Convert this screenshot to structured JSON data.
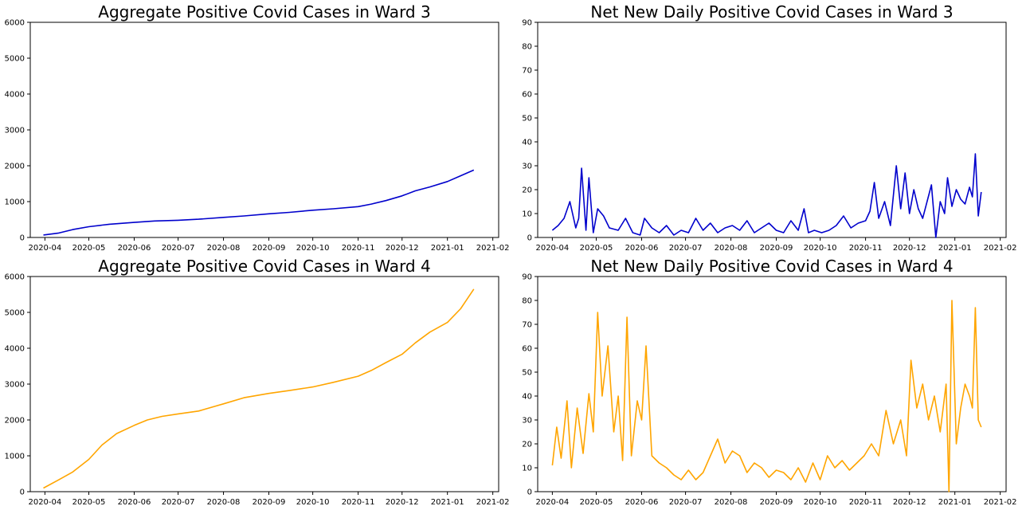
{
  "chart_data": [
    {
      "type": "line",
      "title": "Aggregate Positive Covid Cases in Ward 3",
      "xlabel": "",
      "ylabel": "",
      "grid": false,
      "ylim": [
        0,
        6000
      ],
      "yticks": [
        0,
        1000,
        2000,
        3000,
        4000,
        5000,
        6000
      ],
      "xlim": [
        "2020-03-22",
        "2021-02-05"
      ],
      "xticks": [
        "2020-04",
        "2020-05",
        "2020-06",
        "2020-07",
        "2020-08",
        "2020-09",
        "2020-10",
        "2020-11",
        "2020-12",
        "2021-01",
        "2021-02"
      ],
      "color": "#0000cc",
      "series": [
        {
          "x": [
            "2020-03-31",
            "2020-04-10",
            "2020-04-20",
            "2020-05-01",
            "2020-05-15",
            "2020-06-01",
            "2020-06-15",
            "2020-07-01",
            "2020-07-15",
            "2020-08-01",
            "2020-08-15",
            "2020-09-01",
            "2020-09-15",
            "2020-10-01",
            "2020-10-15",
            "2020-11-01",
            "2020-11-10",
            "2020-11-20",
            "2020-12-01",
            "2020-12-10",
            "2020-12-20",
            "2021-01-01",
            "2021-01-10",
            "2021-01-19"
          ],
          "y": [
            70,
            120,
            220,
            300,
            370,
            420,
            460,
            480,
            510,
            560,
            600,
            660,
            700,
            760,
            800,
            860,
            930,
            1030,
            1160,
            1300,
            1410,
            1560,
            1720,
            1880
          ]
        }
      ]
    },
    {
      "type": "line",
      "title": "Net New Daily Positive Covid Cases in Ward 3",
      "xlabel": "",
      "ylabel": "",
      "grid": false,
      "ylim": [
        0,
        90
      ],
      "yticks": [
        0,
        10,
        20,
        30,
        40,
        50,
        60,
        70,
        80,
        90
      ],
      "xlim": [
        "2020-03-22",
        "2021-02-05"
      ],
      "xticks": [
        "2020-04",
        "2020-05",
        "2020-06",
        "2020-07",
        "2020-08",
        "2020-09",
        "2020-10",
        "2020-11",
        "2020-12",
        "2021-01",
        "2021-02"
      ],
      "color": "#0000cc",
      "series": [
        {
          "x": [
            "2020-04-01",
            "2020-04-05",
            "2020-04-09",
            "2020-04-13",
            "2020-04-17",
            "2020-04-19",
            "2020-04-21",
            "2020-04-24",
            "2020-04-26",
            "2020-04-29",
            "2020-05-02",
            "2020-05-06",
            "2020-05-10",
            "2020-05-16",
            "2020-05-21",
            "2020-05-26",
            "2020-05-31",
            "2020-06-03",
            "2020-06-08",
            "2020-06-13",
            "2020-06-18",
            "2020-06-23",
            "2020-06-28",
            "2020-07-03",
            "2020-07-08",
            "2020-07-13",
            "2020-07-18",
            "2020-07-23",
            "2020-07-28",
            "2020-08-02",
            "2020-08-07",
            "2020-08-12",
            "2020-08-17",
            "2020-08-22",
            "2020-08-27",
            "2020-09-01",
            "2020-09-06",
            "2020-09-11",
            "2020-09-16",
            "2020-09-20",
            "2020-09-23",
            "2020-09-27",
            "2020-10-02",
            "2020-10-07",
            "2020-10-12",
            "2020-10-17",
            "2020-10-22",
            "2020-10-27",
            "2020-11-01",
            "2020-11-04",
            "2020-11-07",
            "2020-11-10",
            "2020-11-14",
            "2020-11-18",
            "2020-11-22",
            "2020-11-25",
            "2020-11-28",
            "2020-12-01",
            "2020-12-04",
            "2020-12-07",
            "2020-12-10",
            "2020-12-13",
            "2020-12-16",
            "2020-12-19",
            "2020-12-22",
            "2020-12-25",
            "2020-12-27",
            "2020-12-30",
            "2021-01-02",
            "2021-01-05",
            "2021-01-08",
            "2021-01-11",
            "2021-01-13",
            "2021-01-15",
            "2021-01-17",
            "2021-01-19"
          ],
          "y": [
            3,
            5,
            8,
            15,
            4,
            8,
            29,
            3,
            25,
            2,
            12,
            9,
            4,
            3,
            8,
            2,
            1,
            8,
            4,
            2,
            5,
            1,
            3,
            2,
            8,
            3,
            6,
            2,
            4,
            5,
            3,
            7,
            2,
            4,
            6,
            3,
            2,
            7,
            3,
            12,
            2,
            3,
            2,
            3,
            5,
            9,
            4,
            6,
            7,
            11,
            23,
            8,
            15,
            5,
            30,
            12,
            27,
            10,
            20,
            12,
            8,
            15,
            22,
            0,
            15,
            10,
            25,
            13,
            20,
            16,
            14,
            21,
            17,
            35,
            9,
            19
          ]
        }
      ]
    },
    {
      "type": "line",
      "title": "Aggregate Positive Covid Cases in Ward 4",
      "xlabel": "",
      "ylabel": "",
      "grid": false,
      "ylim": [
        0,
        6000
      ],
      "yticks": [
        0,
        1000,
        2000,
        3000,
        4000,
        5000,
        6000
      ],
      "xlim": [
        "2020-03-22",
        "2021-02-05"
      ],
      "xticks": [
        "2020-04",
        "2020-05",
        "2020-06",
        "2020-07",
        "2020-08",
        "2020-09",
        "2020-10",
        "2020-11",
        "2020-12",
        "2021-01",
        "2021-02"
      ],
      "color": "#ffa500",
      "series": [
        {
          "x": [
            "2020-03-31",
            "2020-04-10",
            "2020-04-20",
            "2020-05-01",
            "2020-05-10",
            "2020-05-20",
            "2020-06-01",
            "2020-06-10",
            "2020-06-20",
            "2020-07-01",
            "2020-07-15",
            "2020-08-01",
            "2020-08-15",
            "2020-09-01",
            "2020-09-15",
            "2020-10-01",
            "2020-10-15",
            "2020-11-01",
            "2020-11-10",
            "2020-11-20",
            "2020-12-01",
            "2020-12-10",
            "2020-12-20",
            "2021-01-01",
            "2021-01-10",
            "2021-01-19"
          ],
          "y": [
            100,
            320,
            550,
            900,
            1300,
            1620,
            1850,
            2000,
            2100,
            2170,
            2250,
            2450,
            2620,
            2740,
            2820,
            2920,
            3050,
            3220,
            3380,
            3600,
            3830,
            4150,
            4450,
            4720,
            5100,
            5650
          ]
        }
      ]
    },
    {
      "type": "line",
      "title": "Net New Daily Positive Covid Cases in Ward 4",
      "xlabel": "",
      "ylabel": "",
      "grid": false,
      "ylim": [
        0,
        90
      ],
      "yticks": [
        0,
        10,
        20,
        30,
        40,
        50,
        60,
        70,
        80,
        90
      ],
      "xlim": [
        "2020-03-22",
        "2021-02-05"
      ],
      "xticks": [
        "2020-04",
        "2020-05",
        "2020-06",
        "2020-07",
        "2020-08",
        "2020-09",
        "2020-10",
        "2020-11",
        "2020-12",
        "2021-01",
        "2021-02"
      ],
      "color": "#ffa500",
      "series": [
        {
          "x": [
            "2020-04-01",
            "2020-04-04",
            "2020-04-07",
            "2020-04-11",
            "2020-04-14",
            "2020-04-18",
            "2020-04-22",
            "2020-04-26",
            "2020-04-29",
            "2020-05-02",
            "2020-05-05",
            "2020-05-09",
            "2020-05-13",
            "2020-05-16",
            "2020-05-19",
            "2020-05-22",
            "2020-05-25",
            "2020-05-29",
            "2020-06-01",
            "2020-06-04",
            "2020-06-08",
            "2020-06-13",
            "2020-06-18",
            "2020-06-23",
            "2020-06-28",
            "2020-07-03",
            "2020-07-08",
            "2020-07-13",
            "2020-07-18",
            "2020-07-23",
            "2020-07-28",
            "2020-08-02",
            "2020-08-07",
            "2020-08-12",
            "2020-08-17",
            "2020-08-22",
            "2020-08-27",
            "2020-09-01",
            "2020-09-06",
            "2020-09-11",
            "2020-09-16",
            "2020-09-21",
            "2020-09-26",
            "2020-10-01",
            "2020-10-06",
            "2020-10-11",
            "2020-10-16",
            "2020-10-21",
            "2020-10-26",
            "2020-10-31",
            "2020-11-05",
            "2020-11-10",
            "2020-11-15",
            "2020-11-20",
            "2020-11-25",
            "2020-11-29",
            "2020-12-02",
            "2020-12-06",
            "2020-12-10",
            "2020-12-14",
            "2020-12-18",
            "2020-12-22",
            "2020-12-26",
            "2020-12-28",
            "2020-12-30",
            "2021-01-02",
            "2021-01-05",
            "2021-01-08",
            "2021-01-11",
            "2021-01-13",
            "2021-01-15",
            "2021-01-17",
            "2021-01-19"
          ],
          "y": [
            11,
            27,
            14,
            38,
            10,
            35,
            16,
            41,
            25,
            75,
            40,
            61,
            25,
            40,
            13,
            73,
            15,
            38,
            30,
            61,
            15,
            12,
            10,
            7,
            5,
            9,
            5,
            8,
            15,
            22,
            12,
            17,
            15,
            8,
            12,
            10,
            6,
            9,
            8,
            5,
            10,
            4,
            12,
            5,
            15,
            10,
            13,
            9,
            12,
            15,
            20,
            15,
            34,
            20,
            30,
            15,
            55,
            35,
            45,
            30,
            40,
            25,
            45,
            0,
            80,
            20,
            35,
            45,
            40,
            35,
            77,
            30,
            27
          ]
        }
      ]
    }
  ]
}
